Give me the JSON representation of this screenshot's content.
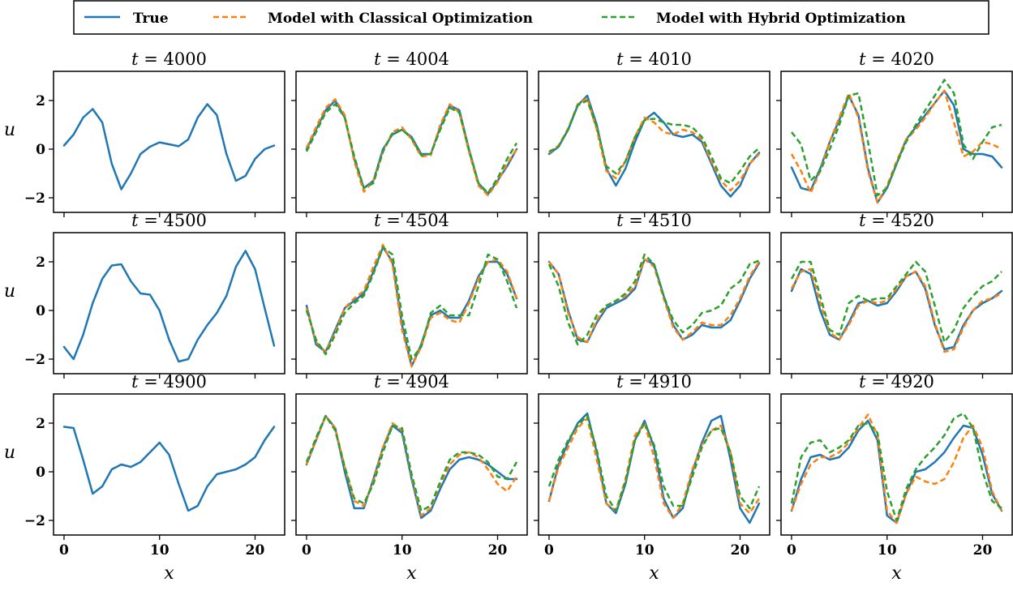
{
  "legend": {
    "location": "top-center",
    "entries": [
      {
        "label": "True",
        "color": "#1f77b4",
        "style": "solid"
      },
      {
        "label": "Model with Classical Optimization",
        "color": "#ff7f0e",
        "style": "dashed"
      },
      {
        "label": "Model with Hybrid Optimization",
        "color": "#2ca02c",
        "style": "dashed"
      }
    ]
  },
  "chart_data": {
    "type": "line",
    "layout": "3x4 grid of subplots",
    "xlabel": "x",
    "ylabel": "u",
    "xlim": [
      -1.1,
      23.1
    ],
    "ylim": [
      -2.6,
      3.2
    ],
    "xticks": [
      0,
      10,
      20
    ],
    "yticks": [
      -2,
      0,
      2
    ],
    "x": [
      0,
      1,
      2,
      3,
      4,
      5,
      6,
      7,
      8,
      9,
      10,
      11,
      12,
      13,
      14,
      15,
      16,
      17,
      18,
      19,
      20,
      21,
      22
    ],
    "panels": [
      {
        "title_var": "t",
        "title_value": "4000",
        "series": [
          {
            "name": "True",
            "values": [
              0.15,
              0.6,
              1.3,
              1.65,
              1.1,
              -0.6,
              -1.65,
              -1.0,
              -0.2,
              0.1,
              0.28,
              0.2,
              0.12,
              0.4,
              1.3,
              1.85,
              1.4,
              -0.2,
              -1.3,
              -1.1,
              -0.4,
              0.0,
              0.15
            ]
          }
        ]
      },
      {
        "title_var": "t",
        "title_value": "4004",
        "series": [
          {
            "name": "True",
            "values": [
              0.0,
              0.8,
              1.6,
              2.0,
              1.3,
              -0.4,
              -1.6,
              -1.3,
              0.0,
              0.6,
              0.8,
              0.5,
              -0.2,
              -0.2,
              0.9,
              1.8,
              1.6,
              0.0,
              -1.4,
              -1.85,
              -1.3,
              -0.7,
              0.0
            ]
          },
          {
            "name": "Model with Classical Optimization",
            "values": [
              0.05,
              0.9,
              1.7,
              2.05,
              1.4,
              -0.5,
              -1.75,
              -1.3,
              -0.1,
              0.7,
              0.9,
              0.4,
              -0.3,
              -0.25,
              1.0,
              1.85,
              1.5,
              -0.1,
              -1.5,
              -1.9,
              -1.35,
              -0.6,
              0.0
            ]
          },
          {
            "name": "Model with Hybrid Optimization",
            "values": [
              -0.1,
              0.7,
              1.5,
              1.85,
              1.3,
              -0.3,
              -1.6,
              -1.4,
              -0.1,
              0.65,
              0.8,
              0.45,
              -0.25,
              -0.2,
              0.8,
              1.7,
              1.5,
              -0.05,
              -1.4,
              -1.8,
              -1.2,
              -0.4,
              0.25
            ]
          }
        ]
      },
      {
        "title_var": "t",
        "title_value": "4010",
        "series": [
          {
            "name": "True",
            "values": [
              -0.2,
              0.1,
              0.8,
              1.8,
              2.2,
              1.0,
              -0.8,
              -1.5,
              -0.8,
              0.3,
              1.2,
              1.5,
              1.1,
              0.6,
              0.5,
              0.6,
              0.3,
              -0.6,
              -1.5,
              -1.95,
              -1.5,
              -0.6,
              -0.15
            ]
          },
          {
            "name": "Model with Classical Optimization",
            "values": [
              -0.15,
              0.15,
              0.85,
              1.85,
              2.1,
              0.8,
              -0.9,
              -1.2,
              -0.5,
              0.5,
              1.3,
              1.1,
              0.7,
              0.6,
              0.8,
              0.7,
              0.4,
              -0.5,
              -1.3,
              -1.7,
              -1.3,
              -0.6,
              -0.2
            ]
          },
          {
            "name": "Model with Hybrid Optimization",
            "values": [
              -0.1,
              0.1,
              0.8,
              1.8,
              2.0,
              0.9,
              -0.7,
              -1.0,
              -0.5,
              0.5,
              1.2,
              1.25,
              1.1,
              1.0,
              1.0,
              0.9,
              0.5,
              -0.3,
              -1.2,
              -1.4,
              -0.9,
              -0.3,
              0.05
            ]
          }
        ]
      },
      {
        "title_var": "t",
        "title_value": "4020",
        "series": [
          {
            "name": "True",
            "values": [
              -0.75,
              -1.6,
              -1.7,
              -0.8,
              0.3,
              1.2,
              2.2,
              1.4,
              -0.8,
              -2.2,
              -1.6,
              -0.6,
              0.4,
              0.9,
              1.4,
              1.9,
              2.4,
              1.8,
              0.0,
              -0.2,
              -0.2,
              -0.3,
              -0.75
            ]
          },
          {
            "name": "Model with Classical Optimization",
            "values": [
              -0.2,
              -0.9,
              -1.8,
              -0.9,
              0.3,
              1.3,
              2.3,
              1.3,
              -0.9,
              -2.2,
              -1.5,
              -0.5,
              0.4,
              0.8,
              1.3,
              1.9,
              2.4,
              1.1,
              -0.3,
              -0.1,
              0.3,
              0.2,
              0.0
            ]
          },
          {
            "name": "Model with Hybrid Optimization",
            "values": [
              0.7,
              0.2,
              -1.3,
              -0.9,
              0.0,
              1.0,
              2.2,
              2.3,
              0.3,
              -1.9,
              -1.6,
              -0.6,
              0.3,
              1.0,
              1.6,
              2.2,
              2.85,
              2.3,
              0.2,
              -0.4,
              0.3,
              0.9,
              1.0
            ]
          }
        ]
      },
      {
        "title_var": "t",
        "title_value": "4500",
        "series": [
          {
            "name": "True",
            "values": [
              -1.5,
              -2.0,
              -1.0,
              0.3,
              1.3,
              1.85,
              1.9,
              1.2,
              0.7,
              0.65,
              0.0,
              -1.2,
              -2.1,
              -2.0,
              -1.2,
              -0.6,
              -0.1,
              0.6,
              1.8,
              2.45,
              1.7,
              0.1,
              -1.45
            ]
          }
        ]
      },
      {
        "title_var": "t",
        "title_value": "4504",
        "series": [
          {
            "name": "True",
            "values": [
              0.2,
              -1.4,
              -1.7,
              -0.8,
              0.1,
              0.4,
              0.7,
              1.6,
              2.6,
              2.0,
              -0.6,
              -2.3,
              -1.4,
              -0.2,
              0.0,
              -0.3,
              -0.3,
              0.4,
              1.4,
              2.0,
              2.0,
              1.5,
              0.5
            ]
          },
          {
            "name": "Model with Classical Optimization",
            "values": [
              0.1,
              -1.3,
              -1.7,
              -0.9,
              0.1,
              0.5,
              0.8,
              1.8,
              2.7,
              1.9,
              -0.8,
              -2.3,
              -1.5,
              -0.3,
              -0.1,
              -0.4,
              -0.5,
              0.3,
              1.3,
              2.0,
              2.1,
              1.6,
              0.5
            ]
          },
          {
            "name": "Model with Hybrid Optimization",
            "values": [
              0.0,
              -1.2,
              -1.8,
              -1.0,
              -0.1,
              0.3,
              0.6,
              1.5,
              2.6,
              2.3,
              -0.2,
              -2.0,
              -1.5,
              -0.1,
              0.2,
              -0.2,
              -0.2,
              -0.2,
              1.0,
              2.3,
              2.1,
              1.2,
              0.1
            ]
          }
        ]
      },
      {
        "title_var": "t",
        "title_value": "4510",
        "series": [
          {
            "name": "True",
            "values": [
              2.0,
              1.5,
              0.0,
              -1.2,
              -1.3,
              -0.5,
              0.1,
              0.3,
              0.5,
              0.9,
              2.1,
              1.9,
              0.6,
              -0.6,
              -1.2,
              -1.0,
              -0.6,
              -0.7,
              -0.7,
              -0.4,
              0.4,
              1.3,
              1.95
            ]
          },
          {
            "name": "Model with Classical Optimization",
            "values": [
              2.0,
              1.5,
              -0.1,
              -1.1,
              -1.3,
              -0.4,
              0.2,
              0.4,
              0.6,
              1.0,
              2.1,
              1.8,
              0.5,
              -0.7,
              -1.2,
              -0.9,
              -0.5,
              -0.6,
              -0.6,
              -0.2,
              0.5,
              1.4,
              2.0
            ]
          },
          {
            "name": "Model with Hybrid Optimization",
            "values": [
              1.9,
              1.0,
              -0.5,
              -1.4,
              -1.0,
              -0.2,
              0.2,
              0.4,
              0.7,
              1.2,
              2.3,
              1.9,
              0.6,
              -0.4,
              -0.9,
              -0.6,
              -0.1,
              0.0,
              0.2,
              0.9,
              1.2,
              1.9,
              2.05
            ]
          }
        ]
      },
      {
        "title_var": "t",
        "title_value": "4520",
        "series": [
          {
            "name": "True",
            "values": [
              0.8,
              1.7,
              1.5,
              0.0,
              -1.0,
              -1.2,
              -0.5,
              0.3,
              0.4,
              0.2,
              0.3,
              0.8,
              1.4,
              1.6,
              0.9,
              -0.6,
              -1.6,
              -1.5,
              -0.6,
              0.0,
              0.3,
              0.5,
              0.8
            ]
          },
          {
            "name": "Model with Classical Optimization",
            "values": [
              0.9,
              1.6,
              1.7,
              0.3,
              -0.9,
              -1.2,
              -0.6,
              0.2,
              0.4,
              0.3,
              0.4,
              0.9,
              1.4,
              1.6,
              1.0,
              -0.5,
              -1.7,
              -1.6,
              -0.7,
              0.0,
              0.4,
              0.5,
              0.7
            ]
          },
          {
            "name": "Model with Hybrid Optimization",
            "values": [
              1.3,
              2.0,
              2.0,
              0.6,
              -0.8,
              -1.0,
              0.3,
              0.6,
              0.4,
              0.5,
              0.5,
              1.0,
              1.5,
              2.0,
              1.6,
              0.2,
              -1.3,
              -0.8,
              0.1,
              0.6,
              1.0,
              1.2,
              1.6
            ]
          }
        ]
      },
      {
        "title_var": "t",
        "title_value": "4900",
        "series": [
          {
            "name": "True",
            "values": [
              1.85,
              1.8,
              0.5,
              -0.9,
              -0.6,
              0.1,
              0.3,
              0.2,
              0.4,
              0.8,
              1.2,
              0.7,
              -0.5,
              -1.6,
              -1.4,
              -0.6,
              -0.1,
              0.0,
              0.1,
              0.3,
              0.6,
              1.3,
              1.85
            ]
          }
        ]
      },
      {
        "title_var": "t",
        "title_value": "4904",
        "series": [
          {
            "name": "True",
            "values": [
              0.3,
              1.3,
              2.3,
              1.8,
              0.0,
              -1.5,
              -1.5,
              -0.3,
              1.0,
              1.9,
              1.6,
              -0.3,
              -1.9,
              -1.6,
              -0.7,
              0.1,
              0.5,
              0.6,
              0.5,
              0.3,
              0.0,
              -0.3,
              -0.3
            ]
          },
          {
            "name": "Model with Classical Optimization",
            "values": [
              0.3,
              1.3,
              2.3,
              1.8,
              0.2,
              -1.2,
              -1.4,
              -0.4,
              1.0,
              2.0,
              1.7,
              -0.2,
              -1.8,
              -1.5,
              -0.5,
              0.3,
              0.7,
              0.8,
              0.6,
              0.1,
              -0.5,
              -0.8,
              -0.2
            ]
          },
          {
            "name": "Model with Hybrid Optimization",
            "values": [
              0.4,
              1.4,
              2.3,
              1.7,
              0.2,
              -1.1,
              -1.3,
              -0.5,
              0.8,
              1.9,
              1.8,
              -0.1,
              -1.6,
              -1.4,
              -0.4,
              0.5,
              0.8,
              0.8,
              0.7,
              0.4,
              -0.2,
              -0.3,
              0.4
            ]
          }
        ]
      },
      {
        "title_var": "t",
        "title_value": "4910",
        "series": [
          {
            "name": "True",
            "values": [
              -1.2,
              0.3,
              1.2,
              2.0,
              2.4,
              0.8,
              -1.3,
              -1.7,
              -0.5,
              1.3,
              2.1,
              1.0,
              -1.1,
              -1.9,
              -1.5,
              0.0,
              1.2,
              2.1,
              2.3,
              0.5,
              -1.5,
              -2.1,
              -1.3
            ]
          },
          {
            "name": "Model with Classical Optimization",
            "values": [
              -1.2,
              0.2,
              1.0,
              1.8,
              2.2,
              0.5,
              -1.3,
              -1.6,
              -0.3,
              1.5,
              2.0,
              0.6,
              -1.3,
              -1.9,
              -1.3,
              0.1,
              1.1,
              1.7,
              1.9,
              0.8,
              -1.3,
              -1.7,
              -1.1
            ]
          },
          {
            "name": "Model with Hybrid Optimization",
            "values": [
              -0.6,
              0.5,
              1.3,
              1.9,
              2.3,
              0.9,
              -1.0,
              -1.6,
              -0.4,
              1.3,
              2.0,
              1.1,
              -0.6,
              -1.4,
              -1.4,
              -0.2,
              1.0,
              1.7,
              1.8,
              0.8,
              -1.0,
              -1.5,
              -0.6
            ]
          }
        ]
      },
      {
        "title_var": "t",
        "title_value": "4920",
        "series": [
          {
            "name": "True",
            "values": [
              -1.6,
              -0.3,
              0.6,
              0.7,
              0.5,
              0.6,
              1.0,
              1.7,
              2.1,
              1.3,
              -1.8,
              -2.1,
              -0.9,
              0.0,
              0.1,
              0.4,
              0.8,
              1.4,
              1.9,
              1.8,
              0.7,
              -0.9,
              -1.6
            ]
          },
          {
            "name": "Model with Classical Optimization",
            "values": [
              -1.6,
              -0.5,
              0.3,
              0.6,
              0.6,
              0.8,
              1.2,
              1.8,
              2.35,
              1.5,
              -1.6,
              -2.1,
              -0.9,
              -0.2,
              -0.4,
              -0.5,
              -0.3,
              0.4,
              1.4,
              1.9,
              1.0,
              -0.8,
              -1.6
            ]
          },
          {
            "name": "Model with Hybrid Optimization",
            "values": [
              -1.3,
              0.6,
              1.2,
              1.3,
              0.8,
              1.0,
              1.3,
              1.9,
              2.0,
              1.6,
              -0.8,
              -2.0,
              -0.7,
              0.1,
              0.6,
              1.0,
              1.5,
              2.2,
              2.4,
              1.8,
              0.0,
              -1.2,
              -1.5
            ]
          }
        ]
      }
    ]
  }
}
